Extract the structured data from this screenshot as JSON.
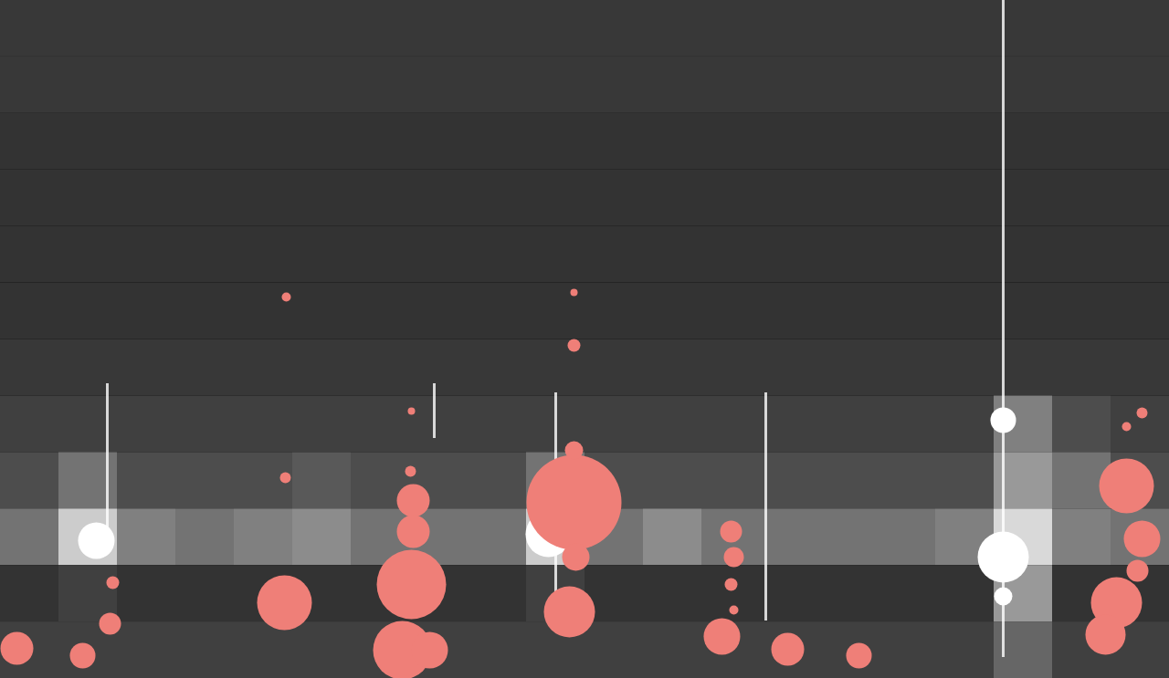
{
  "chart_data": {
    "type": "bubble",
    "tick_labels": false,
    "xlim": [
      0,
      1280
    ],
    "ylim": [
      0,
      743
    ],
    "cell_range": [
      0,
      1
    ],
    "cells": [
      [
        0.22,
        0.22,
        0.22,
        0.22,
        0.22,
        0.22,
        0.22,
        0.22,
        0.22,
        0.22,
        0.22,
        0.22,
        0.22,
        0.22,
        0.22,
        0.22,
        0.22,
        0.22,
        0.22,
        0.22
      ],
      [
        0.22,
        0.22,
        0.22,
        0.22,
        0.22,
        0.22,
        0.22,
        0.22,
        0.22,
        0.22,
        0.22,
        0.22,
        0.22,
        0.22,
        0.22,
        0.22,
        0.22,
        0.22,
        0.22,
        0.22
      ],
      [
        0.2,
        0.2,
        0.2,
        0.2,
        0.2,
        0.2,
        0.2,
        0.2,
        0.2,
        0.2,
        0.2,
        0.2,
        0.2,
        0.2,
        0.2,
        0.2,
        0.2,
        0.2,
        0.2,
        0.2
      ],
      [
        0.2,
        0.2,
        0.2,
        0.2,
        0.2,
        0.2,
        0.2,
        0.2,
        0.2,
        0.2,
        0.2,
        0.2,
        0.2,
        0.2,
        0.2,
        0.2,
        0.2,
        0.2,
        0.2,
        0.2
      ],
      [
        0.2,
        0.2,
        0.2,
        0.2,
        0.2,
        0.2,
        0.2,
        0.2,
        0.2,
        0.2,
        0.2,
        0.2,
        0.2,
        0.2,
        0.2,
        0.2,
        0.2,
        0.2,
        0.2,
        0.2
      ],
      [
        0.2,
        0.2,
        0.2,
        0.2,
        0.2,
        0.2,
        0.2,
        0.2,
        0.2,
        0.2,
        0.2,
        0.2,
        0.2,
        0.2,
        0.2,
        0.2,
        0.2,
        0.2,
        0.2,
        0.2
      ],
      [
        0.22,
        0.22,
        0.22,
        0.22,
        0.22,
        0.22,
        0.22,
        0.22,
        0.22,
        0.22,
        0.22,
        0.22,
        0.22,
        0.22,
        0.22,
        0.22,
        0.22,
        0.22,
        0.22,
        0.22
      ],
      [
        0.25,
        0.25,
        0.25,
        0.25,
        0.25,
        0.25,
        0.25,
        0.25,
        0.25,
        0.25,
        0.25,
        0.25,
        0.25,
        0.25,
        0.25,
        0.25,
        0.25,
        0.5,
        0.3,
        0.25
      ],
      [
        0.3,
        0.45,
        0.3,
        0.3,
        0.3,
        0.35,
        0.3,
        0.3,
        0.3,
        0.45,
        0.3,
        0.3,
        0.3,
        0.3,
        0.3,
        0.3,
        0.3,
        0.6,
        0.45,
        0.3
      ],
      [
        0.45,
        0.8,
        0.5,
        0.45,
        0.5,
        0.55,
        0.45,
        0.45,
        0.45,
        0.8,
        0.45,
        0.55,
        0.45,
        0.45,
        0.45,
        0.45,
        0.5,
        0.85,
        0.5,
        0.45
      ],
      [
        0.2,
        0.25,
        0.2,
        0.2,
        0.2,
        0.2,
        0.2,
        0.2,
        0.2,
        0.25,
        0.2,
        0.2,
        0.2,
        0.2,
        0.2,
        0.2,
        0.2,
        0.6,
        0.2,
        0.2
      ],
      [
        0.25,
        0.25,
        0.25,
        0.25,
        0.25,
        0.25,
        0.25,
        0.25,
        0.25,
        0.25,
        0.25,
        0.25,
        0.25,
        0.25,
        0.25,
        0.25,
        0.25,
        0.4,
        0.25,
        0.25
      ]
    ],
    "streaks": {
      "x": [
        1098,
        838,
        608,
        475,
        117
      ],
      "y1": [
        23,
        63,
        83,
        263,
        143
      ],
      "y2": [
        743,
        313,
        313,
        323,
        323
      ],
      "color": "#ffffff"
    },
    "highlights": {
      "x": [
        1098,
        1098,
        600,
        105,
        1098
      ],
      "y": [
        133,
        283,
        158,
        151,
        90
      ],
      "sizes": [
        28,
        14,
        25,
        20,
        10
      ],
      "color": "#ffffff"
    },
    "series": [
      {
        "color": "#ef7f78",
        "x": [
          628,
          450,
          452,
          452,
          440,
          311,
          623,
          630,
          628,
          1233,
          1250,
          1222,
          1210,
          1245,
          18,
          90,
          790,
          862,
          940,
          800,
          803,
          120,
          123,
          313,
          628,
          628,
          312,
          449,
          450,
          1250,
          1233,
          800,
          803,
          470
        ],
        "y": [
          193,
          103,
          195,
          161,
          31,
          83,
          73,
          133,
          250,
          211,
          153,
          83,
          48,
          118,
          33,
          25,
          46,
          32,
          25,
          161,
          133,
          60,
          105,
          418,
          423,
          365,
          220,
          227,
          293,
          291,
          276,
          103,
          75,
          31
        ],
        "sizes": [
          52,
          38,
          18,
          18,
          32,
          30,
          28,
          15,
          10,
          30,
          20,
          28,
          22,
          12,
          18,
          14,
          20,
          18,
          14,
          12,
          11,
          12,
          7,
          5,
          4,
          7,
          6,
          6,
          4,
          6,
          5,
          7,
          5,
          20
        ]
      }
    ]
  }
}
